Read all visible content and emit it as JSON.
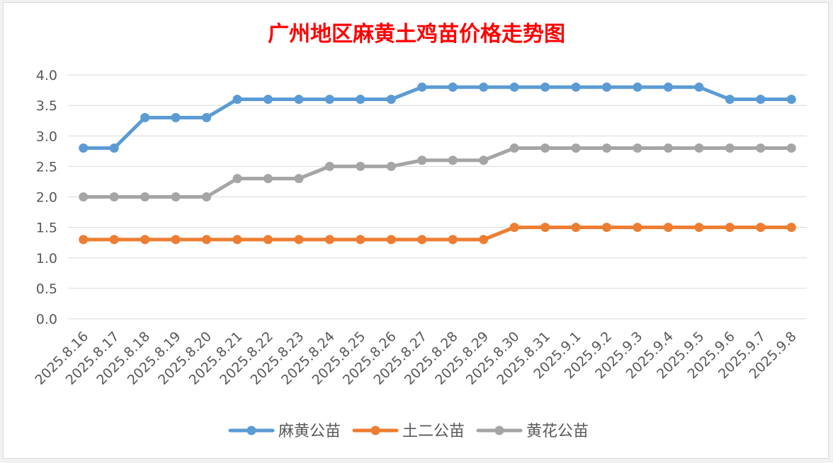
{
  "chart_data": {
    "type": "line",
    "title": "广州地区麻黄土鸡苗价格走势图",
    "title_color": "#ff0000",
    "xlabel": "",
    "ylabel": "",
    "ylim": [
      0,
      4.0
    ],
    "y_ticks": [
      "0.0",
      "0.5",
      "1.0",
      "1.5",
      "2.0",
      "2.5",
      "3.0",
      "3.5",
      "4.0"
    ],
    "grid": true,
    "legend_position": "bottom",
    "categories": [
      "2025.8.16",
      "2025.8.17",
      "2025.8.18",
      "2025.8.19",
      "2025.8.20",
      "2025.8.21",
      "2025.8.22",
      "2025.8.23",
      "2025.8.24",
      "2025.8.25",
      "2025.8.26",
      "2025.8.27",
      "2025.8.28",
      "2025.8.29",
      "2025.8.30",
      "2025.8.31",
      "2025.9.1",
      "2025.9.2",
      "2025.9.3",
      "2025.9.4",
      "2025.9.5",
      "2025.9.6",
      "2025.9.7",
      "2025.9.8"
    ],
    "series": [
      {
        "name": "麻黄公苗",
        "color": "#5b9bd5",
        "values": [
          2.8,
          2.8,
          3.3,
          3.3,
          3.3,
          3.6,
          3.6,
          3.6,
          3.6,
          3.6,
          3.6,
          3.8,
          3.8,
          3.8,
          3.8,
          3.8,
          3.8,
          3.8,
          3.8,
          3.8,
          3.8,
          3.6,
          3.6,
          3.6
        ]
      },
      {
        "name": "土二公苗",
        "color": "#ed7d31",
        "values": [
          1.3,
          1.3,
          1.3,
          1.3,
          1.3,
          1.3,
          1.3,
          1.3,
          1.3,
          1.3,
          1.3,
          1.3,
          1.3,
          1.3,
          1.5,
          1.5,
          1.5,
          1.5,
          1.5,
          1.5,
          1.5,
          1.5,
          1.5,
          1.5
        ]
      },
      {
        "name": "黄花公苗",
        "color": "#a5a5a5",
        "values": [
          2.0,
          2.0,
          2.0,
          2.0,
          2.0,
          2.3,
          2.3,
          2.3,
          2.5,
          2.5,
          2.5,
          2.6,
          2.6,
          2.6,
          2.8,
          2.8,
          2.8,
          2.8,
          2.8,
          2.8,
          2.8,
          2.8,
          2.8,
          2.8
        ]
      }
    ]
  }
}
